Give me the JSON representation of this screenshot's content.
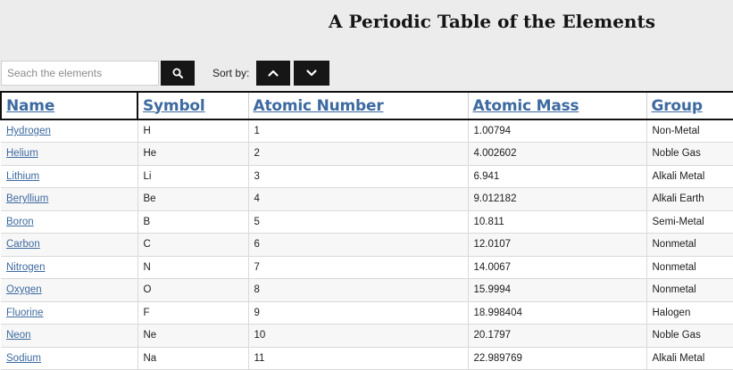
{
  "header": {
    "title": "A Periodic Table of the Elements"
  },
  "search": {
    "placeholder": "Seach the elements",
    "value": ""
  },
  "sort": {
    "label": "Sort by:"
  },
  "icons": {
    "search": "search-icon",
    "sort_asc": "chevron-up-icon",
    "sort_desc": "chevron-down-icon"
  },
  "table": {
    "columns": [
      "Name",
      "Symbol",
      "Atomic Number",
      "Atomic Mass",
      "Group"
    ],
    "rows": [
      {
        "name": "Hydrogen",
        "symbol": "H",
        "number": "1",
        "mass": "1.00794",
        "group": "Non-Metal"
      },
      {
        "name": "Helium",
        "symbol": "He",
        "number": "2",
        "mass": "4.002602",
        "group": "Noble Gas"
      },
      {
        "name": "Lithium",
        "symbol": "Li",
        "number": "3",
        "mass": "6.941",
        "group": "Alkali Metal"
      },
      {
        "name": "Beryllium",
        "symbol": "Be",
        "number": "4",
        "mass": "9.012182",
        "group": "Alkali Earth"
      },
      {
        "name": "Boron",
        "symbol": "B",
        "number": "5",
        "mass": "10.811",
        "group": "Semi-Metal"
      },
      {
        "name": "Carbon",
        "symbol": "C",
        "number": "6",
        "mass": "12.0107",
        "group": "Nonmetal"
      },
      {
        "name": "Nitrogen",
        "symbol": "N",
        "number": "7",
        "mass": "14.0067",
        "group": "Nonmetal"
      },
      {
        "name": "Oxygen",
        "symbol": "O",
        "number": "8",
        "mass": "15.9994",
        "group": "Nonmetal"
      },
      {
        "name": "Fluorine",
        "symbol": "F",
        "number": "9",
        "mass": "18.998404",
        "group": "Halogen"
      },
      {
        "name": "Neon",
        "symbol": "Ne",
        "number": "10",
        "mass": "20.1797",
        "group": "Noble Gas"
      },
      {
        "name": "Sodium",
        "symbol": "Na",
        "number": "11",
        "mass": "22.989769",
        "group": "Alkali Metal"
      }
    ]
  },
  "colors": {
    "link": "#3d6aa0",
    "button": "#161616",
    "background": "#ececec"
  }
}
